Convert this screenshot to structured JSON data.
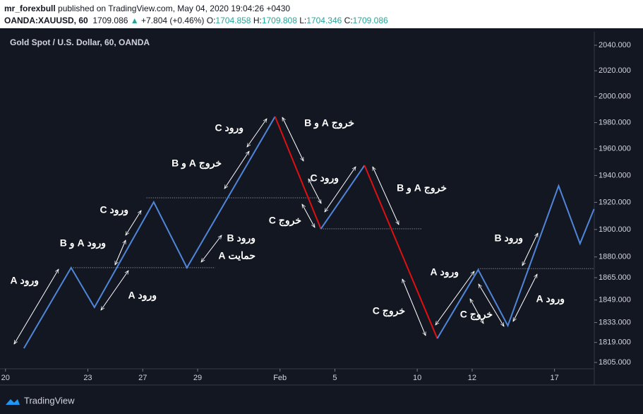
{
  "header": {
    "author": "mr_forexbull",
    "published": "published on TradingView.com, May 04, 2020 19:04:26 +0430",
    "symbol": "OANDA:XAUUSD, 60",
    "last": "1709.086",
    "change": "+7.804 (+0.46%)",
    "ohlc": [
      {
        "label": "O:",
        "value": "1704.858"
      },
      {
        "label": "H:",
        "value": "1709.808"
      },
      {
        "label": "L:",
        "value": "1704.346"
      },
      {
        "label": "C:",
        "value": "1709.086"
      }
    ]
  },
  "footer": {
    "brand": "TradingView"
  },
  "chart_data": {
    "type": "line",
    "title": "Gold Spot / U.S. Dollar, 60, OANDA",
    "log_scale": true,
    "xlim": [
      -0.2,
      21.45
    ],
    "xticks": [
      {
        "value": 0,
        "label": "20"
      },
      {
        "value": 3,
        "label": "23"
      },
      {
        "value": 5,
        "label": "27"
      },
      {
        "value": 7,
        "label": "29"
      },
      {
        "value": 10,
        "label": "Feb"
      },
      {
        "value": 12,
        "label": "5"
      },
      {
        "value": 15,
        "label": "10"
      },
      {
        "value": 17,
        "label": "12"
      },
      {
        "value": 20,
        "label": "17"
      }
    ],
    "ylim": [
      1800.6,
      2050.6
    ],
    "yticks": [
      {
        "value": 1805,
        "label": "1805.000"
      },
      {
        "value": 1819,
        "label": "1819.000"
      },
      {
        "value": 1833,
        "label": "1833.000"
      },
      {
        "value": 1849,
        "label": "1849.000"
      },
      {
        "value": 1865,
        "label": "1865.000"
      },
      {
        "value": 1880,
        "label": "1880.000"
      },
      {
        "value": 1900,
        "label": "1900.000"
      },
      {
        "value": 1920,
        "label": "1920.000"
      },
      {
        "value": 1940,
        "label": "1940.000"
      },
      {
        "value": 1960,
        "label": "1960.000"
      },
      {
        "value": 1980,
        "label": "1980.000"
      },
      {
        "value": 2000,
        "label": "2000.000"
      },
      {
        "value": 2020,
        "label": "2020.000"
      },
      {
        "value": 2040,
        "label": "2040.000"
      }
    ],
    "series": [
      {
        "color": "#4f86d9",
        "x": [
          0.67,
          2.39,
          3.24,
          5.4,
          6.61,
          9.82
        ],
        "values": [
          1814.9,
          1872.2,
          1843.8,
          1920.2,
          1872.2,
          1984.6
        ]
      },
      {
        "color": "#e01010",
        "x": [
          9.82,
          11.49
        ],
        "values": [
          1984.6,
          1900.5
        ]
      },
      {
        "color": "#4f86d9",
        "x": [
          11.49,
          13.08
        ],
        "values": [
          1900.5,
          1947.6
        ]
      },
      {
        "color": "#e01010",
        "x": [
          13.08,
          15.73
        ],
        "values": [
          1947.6,
          1821.8
        ]
      },
      {
        "color": "#4f86d9",
        "x": [
          15.73,
          17.22,
          18.3,
          20.15,
          20.93,
          21.44
        ],
        "values": [
          1821.8,
          1870.7,
          1830.8,
          1932.3,
          1889.7,
          1915.1
        ]
      }
    ],
    "levels": [
      {
        "value": 1872.2,
        "x": [
          2.39,
          7.64
        ]
      },
      {
        "value": 1923.4,
        "x": [
          5.14,
          11.44
        ]
      },
      {
        "value": 1900.5,
        "x": [
          11.49,
          15.17
        ]
      },
      {
        "value": 1871.5,
        "x": [
          17.22,
          21.44
        ]
      }
    ],
    "annotations": [
      "ورود A",
      "ورود A و B",
      "ورود C",
      "ورود A",
      "خروج A و B",
      "ورود C",
      "ورود B",
      "حمایت A",
      "خروج A و B",
      "ورود C",
      "خروج C",
      "خروج A و B",
      "خروج C",
      "ورود A",
      "خروج C",
      "ورود B",
      "ورود A"
    ]
  }
}
